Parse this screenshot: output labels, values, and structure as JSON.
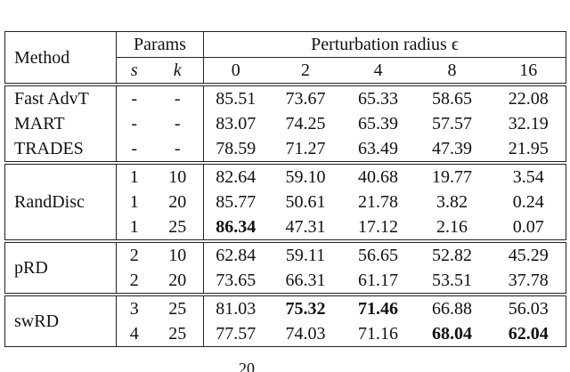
{
  "header": {
    "method": "Method",
    "params": "Params",
    "perturbation": "Perturbation radius ϵ",
    "s": "s",
    "k": "k",
    "radii": [
      "0",
      "2",
      "4",
      "8",
      "16"
    ]
  },
  "groups": [
    {
      "rows": [
        {
          "method": "Fast AdvT",
          "s": "-",
          "k": "-",
          "values": [
            "85.51",
            "73.67",
            "65.33",
            "58.65",
            "22.08"
          ],
          "bold": []
        },
        {
          "method": "MART",
          "s": "-",
          "k": "-",
          "values": [
            "83.07",
            "74.25",
            "65.39",
            "57.57",
            "32.19"
          ],
          "bold": []
        },
        {
          "method": "TRADES",
          "s": "-",
          "k": "-",
          "values": [
            "78.59",
            "71.27",
            "63.49",
            "47.39",
            "21.95"
          ],
          "bold": []
        }
      ]
    },
    {
      "method": "RandDisc",
      "rows": [
        {
          "s": "1",
          "k": "10",
          "values": [
            "82.64",
            "59.10",
            "40.68",
            "19.77",
            "3.54"
          ],
          "bold": []
        },
        {
          "s": "1",
          "k": "20",
          "values": [
            "85.77",
            "50.61",
            "21.78",
            "3.82",
            "0.24"
          ],
          "bold": []
        },
        {
          "s": "1",
          "k": "25",
          "values": [
            "86.34",
            "47.31",
            "17.12",
            "2.16",
            "0.07"
          ],
          "bold": [
            0
          ]
        }
      ]
    },
    {
      "method": "pRD",
      "rows": [
        {
          "s": "2",
          "k": "10",
          "values": [
            "62.84",
            "59.11",
            "56.65",
            "52.82",
            "45.29"
          ],
          "bold": []
        },
        {
          "s": "2",
          "k": "20",
          "values": [
            "73.65",
            "66.31",
            "61.17",
            "53.51",
            "37.78"
          ],
          "bold": []
        }
      ]
    },
    {
      "method": "swRD",
      "rows": [
        {
          "s": "3",
          "k": "25",
          "values": [
            "81.03",
            "75.32",
            "71.46",
            "66.88",
            "56.03"
          ],
          "bold": [
            1,
            2
          ]
        },
        {
          "s": "4",
          "k": "25",
          "values": [
            "77.57",
            "74.03",
            "71.16",
            "68.04",
            "62.04"
          ],
          "bold": [
            3,
            4
          ]
        }
      ]
    }
  ],
  "page_number": "20"
}
